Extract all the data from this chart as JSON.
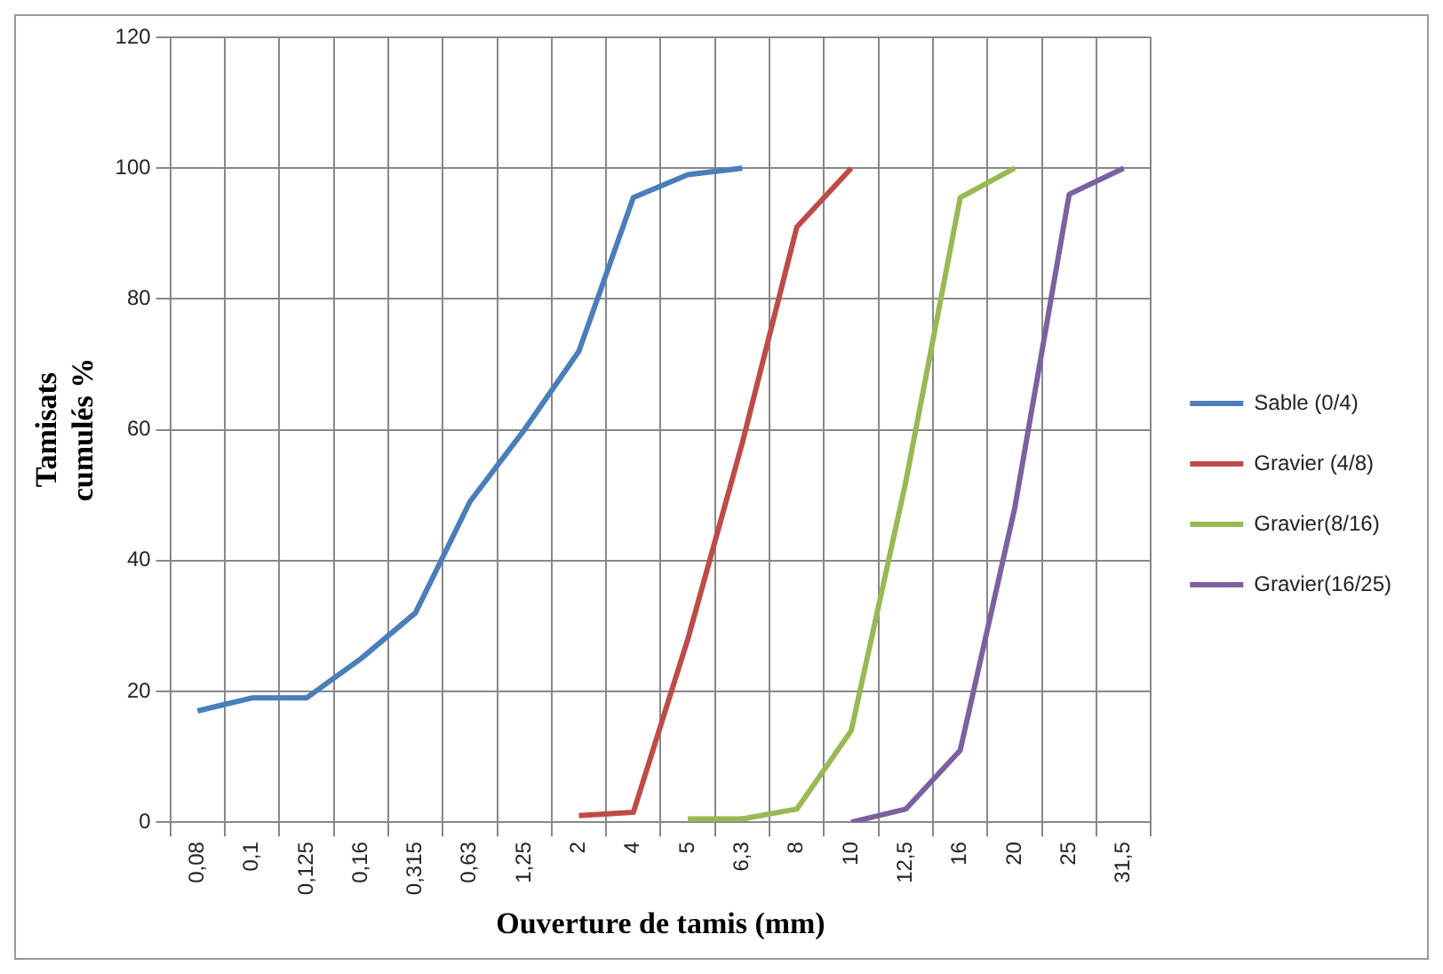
{
  "chart_data": {
    "type": "line",
    "xlabel": "Ouverture de tamis (mm)",
    "ylabel": "Tamisats cumulés %",
    "categories": [
      "0,08",
      "0,1",
      "0,125",
      "0,16",
      "0,315",
      "0,63",
      "1,25",
      "2",
      "4",
      "5",
      "6,3",
      "8",
      "10",
      "12,5",
      "16",
      "20",
      "25",
      "31,5"
    ],
    "series": [
      {
        "name": "Sable (0/4)",
        "color": "#4a7ebb",
        "values": [
          17,
          19,
          19,
          25,
          32,
          49,
          60,
          72,
          95.5,
          99,
          100,
          null,
          null,
          null,
          null,
          null,
          null,
          null
        ]
      },
      {
        "name": "Gravier (4/8)",
        "color": "#be4b48",
        "values": [
          null,
          null,
          null,
          null,
          null,
          null,
          null,
          1,
          1.5,
          28,
          58,
          91,
          100,
          null,
          null,
          null,
          null,
          null
        ]
      },
      {
        "name": "Gravier(8/16)",
        "color": "#98b954",
        "values": [
          null,
          null,
          null,
          null,
          null,
          null,
          null,
          null,
          null,
          0.5,
          0.5,
          2,
          14,
          52,
          95.5,
          100,
          null,
          null
        ]
      },
      {
        "name": "Gravier(16/25)",
        "color": "#7d60a0",
        "values": [
          null,
          null,
          null,
          null,
          null,
          null,
          null,
          null,
          null,
          null,
          null,
          null,
          0,
          2,
          11,
          48,
          96,
          100
        ]
      }
    ],
    "ylim": [
      0,
      120
    ],
    "yticks": [
      0,
      20,
      40,
      60,
      80,
      100,
      120
    ],
    "grid": true,
    "legend": "right",
    "marker": "none",
    "line_style": "solid"
  }
}
